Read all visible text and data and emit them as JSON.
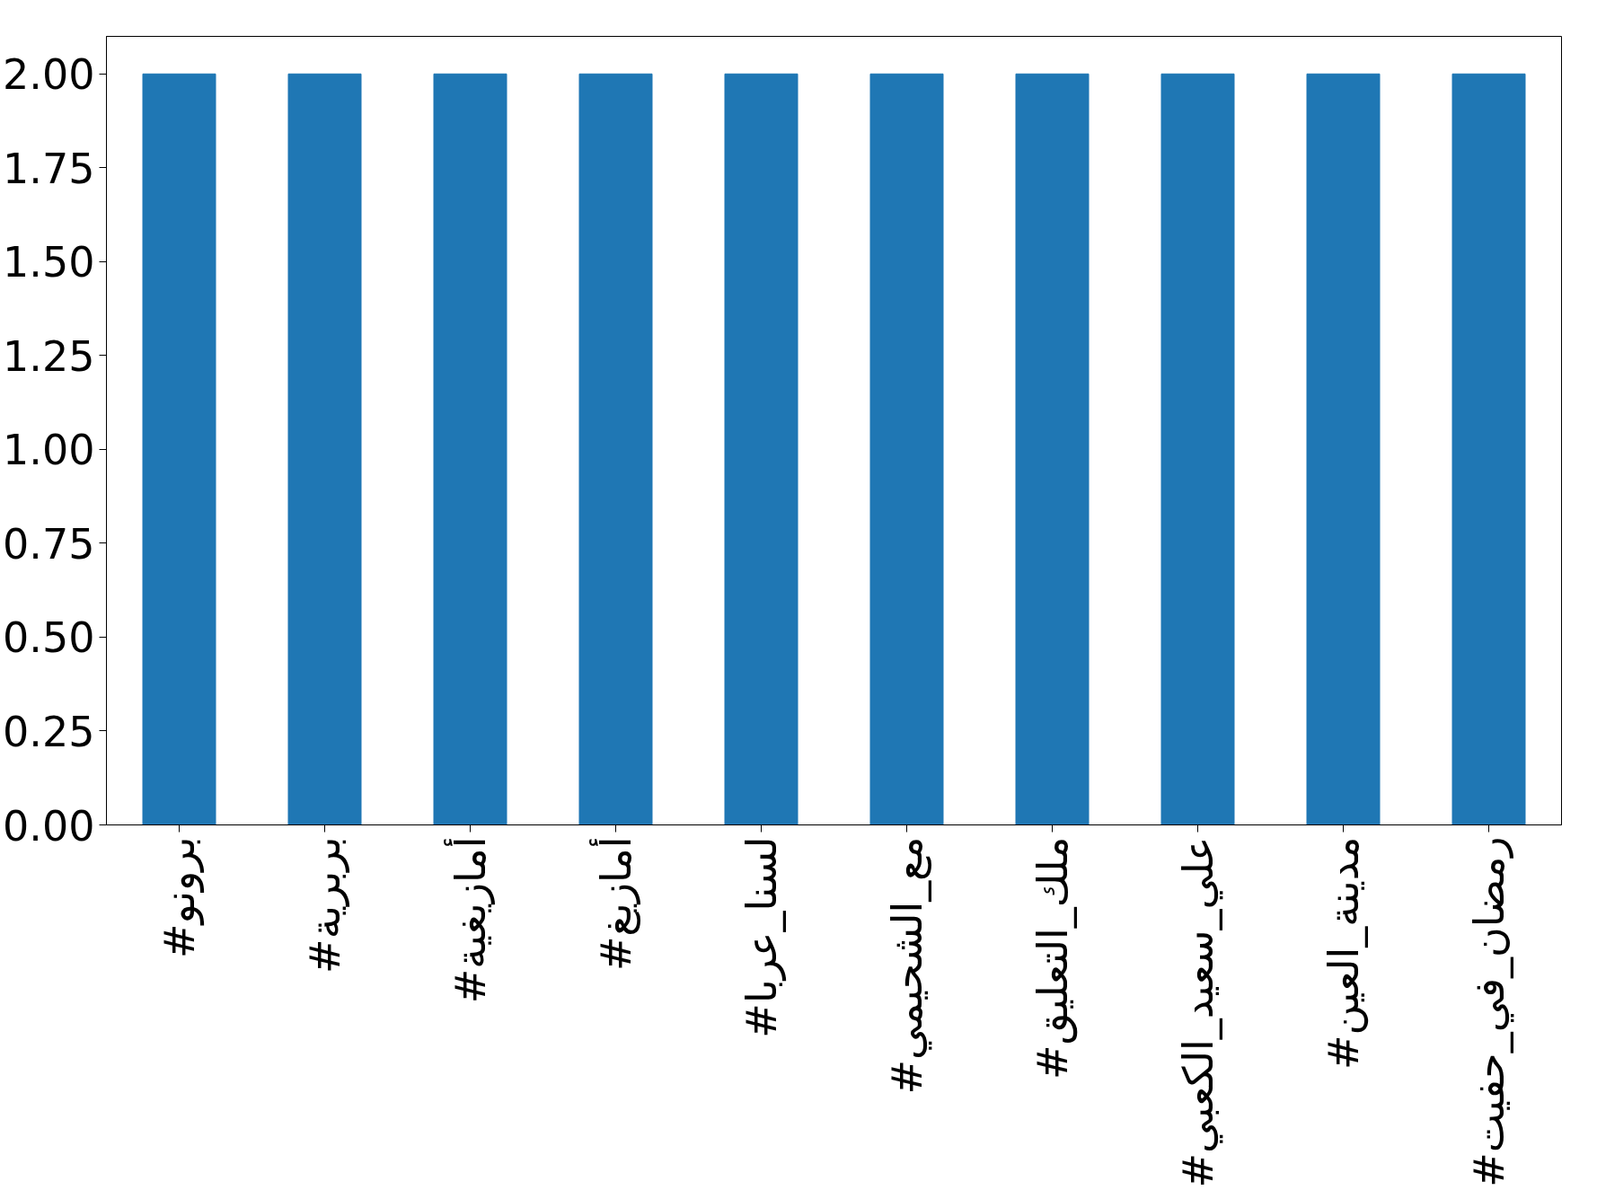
{
  "chart_data": {
    "type": "bar",
    "categories": [
      "#برونو",
      "#بربرية",
      "#أمازيغية",
      "#أمازيغ",
      "#لسنا_عربا",
      "#مع_الشحيمي",
      "#ملك_التعليق",
      "#علي_سعيد_الكعبي",
      "#مدينة_العين",
      "#رمضان_في_حفيت"
    ],
    "values": [
      2,
      2,
      2,
      2,
      2,
      2,
      2,
      2,
      2,
      2
    ],
    "color": "#1f77b4",
    "ylim": [
      0,
      2.1
    ],
    "yticks": [
      {
        "value": 0,
        "label": "0.00"
      },
      {
        "value": 0.25,
        "label": "0.25"
      },
      {
        "value": 0.5,
        "label": "0.50"
      },
      {
        "value": 0.75,
        "label": "0.75"
      },
      {
        "value": 1,
        "label": "1.00"
      },
      {
        "value": 1.25,
        "label": "1.25"
      },
      {
        "value": 1.5,
        "label": "1.50"
      },
      {
        "value": 1.75,
        "label": "1.75"
      },
      {
        "value": 2,
        "label": "2.00"
      }
    ],
    "grid": false
  }
}
